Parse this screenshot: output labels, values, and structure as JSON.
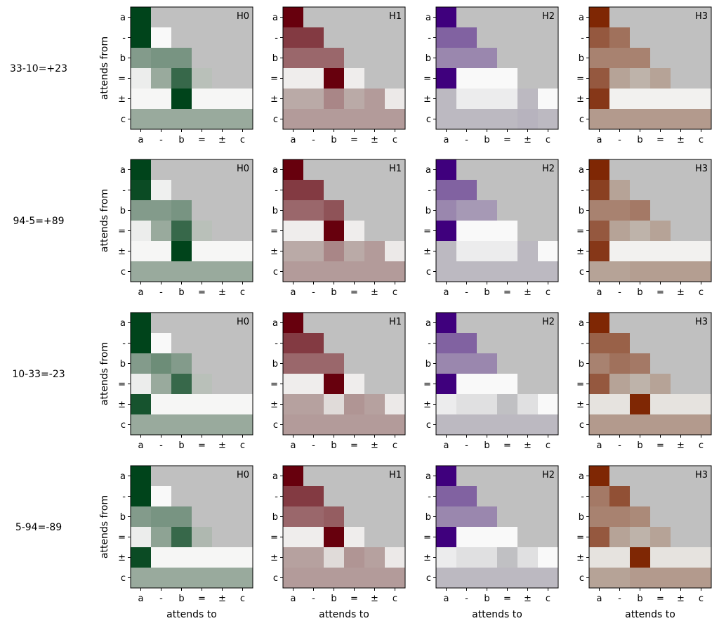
{
  "figure": {
    "xlabel": "attends to",
    "ylabel": "attends from"
  },
  "palettes": {
    "H0": [
      "#c0c4bf",
      "#00441b"
    ],
    "H1": [
      "#c0b6b2",
      "#67000d"
    ],
    "H2": [
      "#c0c0c3",
      "#3f007d"
    ],
    "H3": [
      "#c0b8b0",
      "#7f2704"
    ]
  },
  "chart_data": {
    "type": "heatmap",
    "tokens": [
      "a",
      "-",
      "b",
      "=",
      "±",
      "c"
    ],
    "heads": [
      "H0",
      "H1",
      "H2",
      "H3"
    ],
    "mask": "lower-triangular (causal); masked cells drawn grey",
    "examples": [
      {
        "label": "33-10=+23",
        "heads": [
          {
            "head": "H0",
            "matrix": [
              [
                1.0
              ],
              [
                1.0,
                0.02
              ],
              [
                0.4,
                0.45,
                0.45
              ],
              [
                0.06,
                0.3,
                0.75,
                0.15
              ],
              [
                0.03,
                0.03,
                1.0,
                0.03,
                0.03,
                0.03
              ],
              [
                0.3,
                0.3,
                0.3,
                0.3,
                0.3,
                0.3
              ]
            ]
          },
          {
            "head": "H1",
            "matrix": [
              [
                1.0
              ],
              [
                0.72,
                0.72
              ],
              [
                0.5,
                0.5,
                0.5
              ],
              [
                0.05,
                0.05,
                1.0,
                0.05
              ],
              [
                0.18,
                0.18,
                0.35,
                0.18,
                0.25,
                0.06
              ],
              [
                0.25,
                0.25,
                0.25,
                0.25,
                0.25,
                0.25
              ]
            ]
          },
          {
            "head": "H2",
            "matrix": [
              [
                1.0
              ],
              [
                0.55,
                0.55
              ],
              [
                0.38,
                0.38,
                0.38
              ],
              [
                1.0,
                0.02,
                0.02,
                0.02
              ],
              [
                0.15,
                0.06,
                0.06,
                0.06,
                0.15,
                0.02
              ],
              [
                0.15,
                0.15,
                0.15,
                0.15,
                0.18,
                0.15
              ]
            ]
          },
          {
            "head": "H3",
            "matrix": [
              [
                1.0
              ],
              [
                0.7,
                0.55
              ],
              [
                0.45,
                0.45,
                0.45
              ],
              [
                0.7,
                0.25,
                0.15,
                0.25
              ],
              [
                0.9,
                0.04,
                0.04,
                0.04,
                0.04,
                0.04
              ],
              [
                0.3,
                0.3,
                0.3,
                0.3,
                0.3,
                0.3
              ]
            ]
          }
        ]
      },
      {
        "label": "94-5=+89",
        "heads": [
          {
            "head": "H0",
            "matrix": [
              [
                1.0
              ],
              [
                0.95,
                0.05
              ],
              [
                0.4,
                0.4,
                0.45
              ],
              [
                0.06,
                0.3,
                0.75,
                0.15
              ],
              [
                0.03,
                0.03,
                1.0,
                0.03,
                0.03,
                0.03
              ],
              [
                0.3,
                0.3,
                0.3,
                0.3,
                0.3,
                0.3
              ]
            ]
          },
          {
            "head": "H1",
            "matrix": [
              [
                1.0
              ],
              [
                0.72,
                0.72
              ],
              [
                0.5,
                0.5,
                0.6
              ],
              [
                0.05,
                0.05,
                1.0,
                0.05
              ],
              [
                0.18,
                0.18,
                0.35,
                0.18,
                0.25,
                0.06
              ],
              [
                0.25,
                0.25,
                0.25,
                0.25,
                0.25,
                0.25
              ]
            ]
          },
          {
            "head": "H2",
            "matrix": [
              [
                1.0
              ],
              [
                0.55,
                0.55
              ],
              [
                0.38,
                0.3,
                0.3
              ],
              [
                1.0,
                0.02,
                0.02,
                0.02
              ],
              [
                0.15,
                0.06,
                0.06,
                0.06,
                0.15,
                0.02
              ],
              [
                0.15,
                0.15,
                0.15,
                0.15,
                0.15,
                0.15
              ]
            ]
          },
          {
            "head": "H3",
            "matrix": [
              [
                1.0
              ],
              [
                0.85,
                0.25
              ],
              [
                0.45,
                0.45,
                0.5
              ],
              [
                0.7,
                0.25,
                0.15,
                0.25
              ],
              [
                0.9,
                0.04,
                0.04,
                0.04,
                0.04,
                0.04
              ],
              [
                0.25,
                0.25,
                0.28,
                0.28,
                0.28,
                0.28
              ]
            ]
          }
        ]
      },
      {
        "label": "10-33=-23",
        "heads": [
          {
            "head": "H0",
            "matrix": [
              [
                1.0
              ],
              [
                1.0,
                0.02
              ],
              [
                0.4,
                0.5,
                0.4
              ],
              [
                0.06,
                0.3,
                0.75,
                0.15
              ],
              [
                0.9,
                0.03,
                0.03,
                0.03,
                0.03,
                0.03
              ],
              [
                0.3,
                0.3,
                0.3,
                0.3,
                0.3,
                0.3
              ]
            ]
          },
          {
            "head": "H1",
            "matrix": [
              [
                1.0
              ],
              [
                0.72,
                0.72
              ],
              [
                0.5,
                0.5,
                0.5
              ],
              [
                0.05,
                0.05,
                1.0,
                0.05
              ],
              [
                0.22,
                0.22,
                0.1,
                0.28,
                0.22,
                0.06
              ],
              [
                0.25,
                0.25,
                0.25,
                0.25,
                0.25,
                0.25
              ]
            ]
          },
          {
            "head": "H2",
            "matrix": [
              [
                1.0
              ],
              [
                0.55,
                0.55
              ],
              [
                0.38,
                0.38,
                0.38
              ],
              [
                1.0,
                0.02,
                0.02,
                0.02
              ],
              [
                0.06,
                0.1,
                0.1,
                0.12,
                0.1,
                0.02
              ],
              [
                0.15,
                0.15,
                0.15,
                0.15,
                0.15,
                0.15
              ]
            ]
          },
          {
            "head": "H3",
            "matrix": [
              [
                1.0
              ],
              [
                0.65,
                0.65
              ],
              [
                0.45,
                0.55,
                0.5
              ],
              [
                0.7,
                0.25,
                0.15,
                0.25
              ],
              [
                0.08,
                0.08,
                1.0,
                0.08,
                0.08,
                0.08
              ],
              [
                0.3,
                0.3,
                0.3,
                0.3,
                0.3,
                0.3
              ]
            ]
          }
        ]
      },
      {
        "label": "5-94=-89",
        "heads": [
          {
            "head": "H0",
            "matrix": [
              [
                1.0
              ],
              [
                1.0,
                0.02
              ],
              [
                0.4,
                0.45,
                0.45
              ],
              [
                0.06,
                0.35,
                0.75,
                0.2
              ],
              [
                0.95,
                0.03,
                0.03,
                0.03,
                0.03,
                0.03
              ],
              [
                0.3,
                0.3,
                0.3,
                0.3,
                0.3,
                0.3
              ]
            ]
          },
          {
            "head": "H1",
            "matrix": [
              [
                1.0
              ],
              [
                0.72,
                0.72
              ],
              [
                0.5,
                0.5,
                0.55
              ],
              [
                0.05,
                0.05,
                1.0,
                0.05
              ],
              [
                0.22,
                0.22,
                0.1,
                0.28,
                0.22,
                0.06
              ],
              [
                0.25,
                0.25,
                0.25,
                0.25,
                0.25,
                0.25
              ]
            ]
          },
          {
            "head": "H2",
            "matrix": [
              [
                1.0
              ],
              [
                0.55,
                0.55
              ],
              [
                0.38,
                0.38,
                0.38
              ],
              [
                1.0,
                0.02,
                0.02,
                0.02
              ],
              [
                0.06,
                0.1,
                0.1,
                0.12,
                0.1,
                0.02
              ],
              [
                0.15,
                0.15,
                0.15,
                0.15,
                0.15,
                0.15
              ]
            ]
          },
          {
            "head": "H3",
            "matrix": [
              [
                1.0
              ],
              [
                0.5,
                0.75
              ],
              [
                0.45,
                0.45,
                0.4
              ],
              [
                0.7,
                0.25,
                0.15,
                0.25
              ],
              [
                0.08,
                0.08,
                1.0,
                0.08,
                0.08,
                0.08
              ],
              [
                0.25,
                0.25,
                0.3,
                0.3,
                0.3,
                0.3
              ]
            ]
          }
        ]
      }
    ]
  }
}
